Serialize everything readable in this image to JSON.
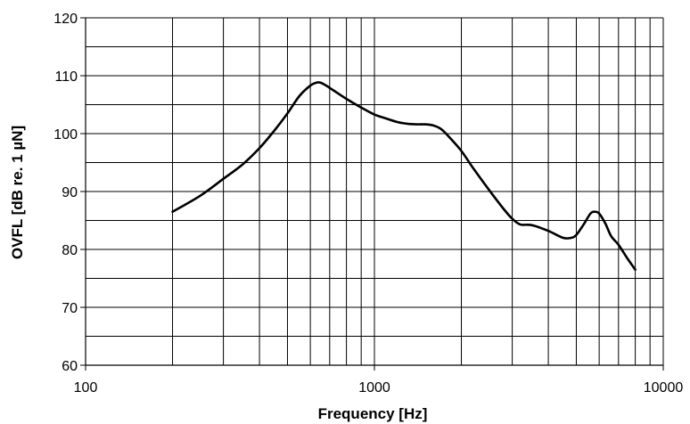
{
  "chart_data": {
    "type": "line",
    "xlabel": "Frequency [Hz]",
    "ylabel": "OVFL [dB re. 1 µN]",
    "xscale": "log",
    "xlim": [
      100,
      10000
    ],
    "ylim": [
      60,
      120
    ],
    "x_ticks": [
      100,
      1000,
      10000
    ],
    "x_tick_labels": [
      "100",
      "1000",
      "10000"
    ],
    "y_ticks": [
      60,
      70,
      80,
      90,
      100,
      110,
      120
    ],
    "y_tick_labels": [
      "60",
      "70",
      "80",
      "90",
      "100",
      "110",
      "120"
    ],
    "y_minor_step": 5,
    "grid": true,
    "line_color": "#000000",
    "series": [
      {
        "x": [
          200,
          250,
          300,
          350,
          400,
          450,
          500,
          550,
          600,
          630,
          650,
          680,
          720,
          800,
          900,
          1000,
          1100,
          1200,
          1300,
          1400,
          1500,
          1600,
          1700,
          1800,
          2000,
          2200,
          2500,
          2800,
          3000,
          3200,
          3500,
          4000,
          4500,
          4800,
          5000,
          5300,
          5600,
          5800,
          6000,
          6300,
          6600,
          7000,
          7500,
          8000
        ],
        "y": [
          86.5,
          89.3,
          92.2,
          94.7,
          97.5,
          100.5,
          103.5,
          106.5,
          108.3,
          108.8,
          108.8,
          108.3,
          107.5,
          106.0,
          104.5,
          103.3,
          102.6,
          102.0,
          101.7,
          101.6,
          101.6,
          101.4,
          100.8,
          99.6,
          97.0,
          94.0,
          90.2,
          87.0,
          85.3,
          84.3,
          84.2,
          83.2,
          82.0,
          82.0,
          82.5,
          84.3,
          86.2,
          86.5,
          86.2,
          84.5,
          82.3,
          80.8,
          78.5,
          76.5
        ]
      }
    ]
  }
}
